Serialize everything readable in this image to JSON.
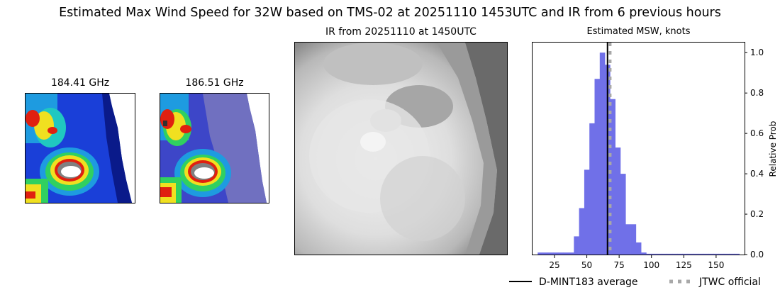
{
  "figure": {
    "suptitle": "Estimated Max Wind Speed for 32W based on TMS-02 at 20251110 1453UTC and IR from 6 previous hours"
  },
  "panels": {
    "mw1_title": "184.41 GHz",
    "mw2_title": "186.51 GHz",
    "ir_title": "IR from 20251110 at 1450UTC",
    "hist_title": "Estimated MSW, knots"
  },
  "colors": {
    "bar": "#7070e8",
    "average_line": "#000000",
    "jtwc_line": "#a8a8a8"
  },
  "chart_data": {
    "type": "bar",
    "title": "Estimated MSW, knots",
    "xlabel": "",
    "ylabel": "Relative Prob",
    "y_axis_side": "right",
    "xlim": [
      8,
      172
    ],
    "ylim": [
      0,
      1.05
    ],
    "xticks": [
      25,
      50,
      75,
      100,
      125,
      150
    ],
    "yticks": [
      0.0,
      0.2,
      0.4,
      0.6,
      0.8,
      1.0
    ],
    "bin_width": 4,
    "bins": [
      {
        "x": 14,
        "y": 0.01
      },
      {
        "x": 18,
        "y": 0.01
      },
      {
        "x": 22,
        "y": 0.01
      },
      {
        "x": 26,
        "y": 0.01
      },
      {
        "x": 30,
        "y": 0.01
      },
      {
        "x": 34,
        "y": 0.01
      },
      {
        "x": 38,
        "y": 0.01
      },
      {
        "x": 42,
        "y": 0.09
      },
      {
        "x": 46,
        "y": 0.23
      },
      {
        "x": 50,
        "y": 0.42
      },
      {
        "x": 54,
        "y": 0.65
      },
      {
        "x": 58,
        "y": 0.87
      },
      {
        "x": 62,
        "y": 1.0
      },
      {
        "x": 66,
        "y": 0.94
      },
      {
        "x": 70,
        "y": 0.77
      },
      {
        "x": 74,
        "y": 0.53
      },
      {
        "x": 78,
        "y": 0.4
      },
      {
        "x": 82,
        "y": 0.15
      },
      {
        "x": 86,
        "y": 0.15
      },
      {
        "x": 90,
        "y": 0.06
      },
      {
        "x": 94,
        "y": 0.01
      },
      {
        "x": 98,
        "y": 0.004
      },
      {
        "x": 102,
        "y": 0.004
      },
      {
        "x": 106,
        "y": 0.004
      },
      {
        "x": 110,
        "y": 0.004
      },
      {
        "x": 114,
        "y": 0.004
      },
      {
        "x": 118,
        "y": 0.004
      },
      {
        "x": 122,
        "y": 0.004
      },
      {
        "x": 126,
        "y": 0.004
      },
      {
        "x": 130,
        "y": 0.004
      },
      {
        "x": 134,
        "y": 0.004
      },
      {
        "x": 138,
        "y": 0.004
      },
      {
        "x": 142,
        "y": 0.004
      },
      {
        "x": 146,
        "y": 0.004
      },
      {
        "x": 150,
        "y": 0.004
      },
      {
        "x": 154,
        "y": 0.004
      },
      {
        "x": 158,
        "y": 0.004
      },
      {
        "x": 162,
        "y": 0.004
      },
      {
        "x": 166,
        "y": 0.004
      }
    ],
    "vlines": [
      {
        "name": "D-MINT183 average",
        "x": 66,
        "style": "solid"
      },
      {
        "name": "JTWC official",
        "x": 68,
        "style": "dotted"
      }
    ],
    "legend": {
      "placement": "bottom-right",
      "entries": [
        "D-MINT183 average",
        "JTWC official"
      ]
    }
  }
}
